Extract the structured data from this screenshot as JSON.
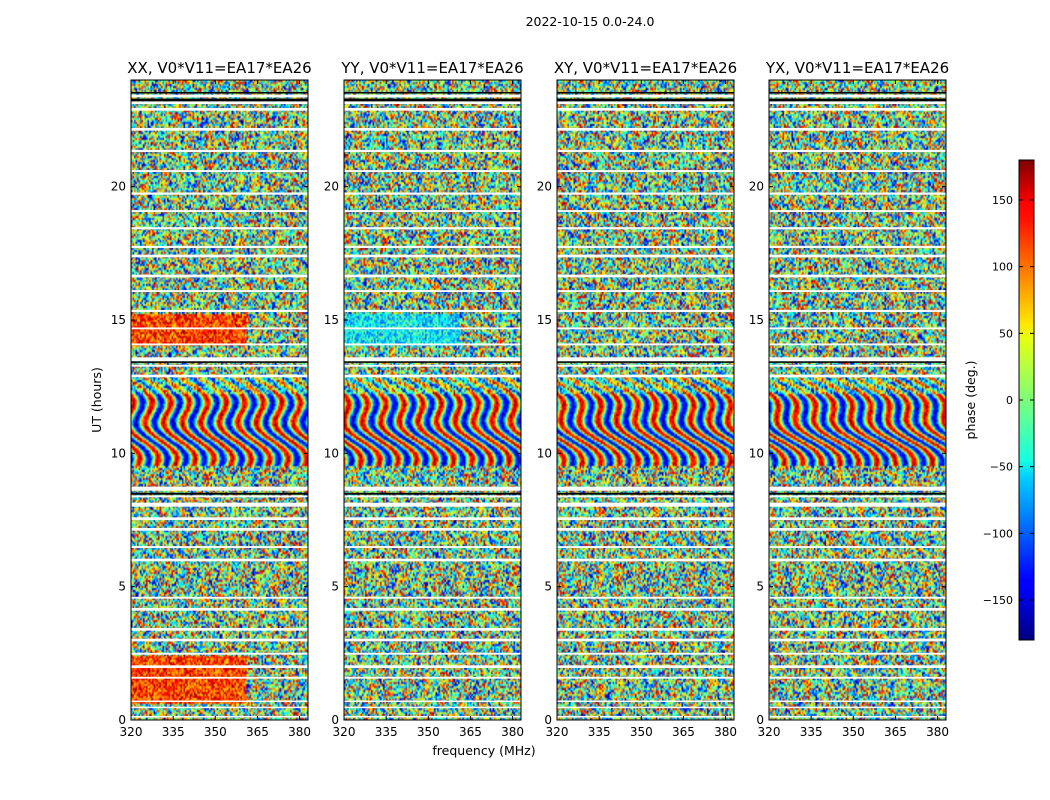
{
  "figure": {
    "suptitle": "2022-10-15 0.0-24.0",
    "xlabel": "frequency (MHz)",
    "ylabel": "UT (hours)",
    "colorbar_label": "phase (deg.)"
  },
  "chart_data": {
    "type": "heatmap",
    "colormap": "jet",
    "panels": [
      {
        "title": "XX, V0*V11=EA17*EA26"
      },
      {
        "title": "YY, V0*V11=EA17*EA26"
      },
      {
        "title": "XY, V0*V11=EA17*EA26"
      },
      {
        "title": "YX, V0*V11=EA17*EA26"
      }
    ],
    "x_ticks": [
      320,
      335,
      350,
      365,
      380
    ],
    "x_tick_labels": [
      "320",
      "335",
      "350",
      "365",
      "380"
    ],
    "xlim": [
      320,
      383
    ],
    "y_ticks": [
      0,
      5,
      10,
      15,
      20
    ],
    "y_tick_labels": [
      "0",
      "5",
      "10",
      "15",
      "20"
    ],
    "ylim": [
      0,
      24
    ],
    "colorbar": {
      "range": [
        -180,
        180
      ],
      "ticks": [
        -150,
        -100,
        -50,
        0,
        50,
        100,
        150
      ],
      "tick_labels": [
        "−150",
        "−100",
        "−50",
        "0",
        "50",
        "100",
        "150"
      ]
    },
    "blank_ut_bands": [
      [
        0.1,
        0.15
      ],
      [
        0.45,
        0.5
      ],
      [
        0.68,
        0.73
      ],
      [
        1.55,
        1.62
      ],
      [
        1.95,
        2.05
      ],
      [
        2.45,
        2.52
      ],
      [
        2.95,
        3.05
      ],
      [
        3.35,
        3.45
      ],
      [
        4.1,
        4.2
      ],
      [
        4.55,
        4.62
      ],
      [
        5.95,
        6.05
      ],
      [
        6.45,
        6.52
      ],
      [
        7.1,
        7.2
      ],
      [
        7.5,
        7.6
      ],
      [
        8.0,
        8.15
      ],
      [
        8.35,
        8.42
      ],
      [
        8.6,
        8.75
      ],
      [
        12.85,
        12.95
      ],
      [
        13.25,
        13.32
      ],
      [
        13.45,
        13.6
      ],
      [
        14.05,
        14.12
      ],
      [
        14.65,
        14.72
      ],
      [
        15.3,
        15.38
      ],
      [
        16.05,
        16.12
      ],
      [
        16.6,
        16.7
      ],
      [
        17.35,
        17.45
      ],
      [
        17.7,
        17.78
      ],
      [
        18.4,
        18.48
      ],
      [
        19.05,
        19.12
      ],
      [
        19.7,
        19.78
      ],
      [
        20.55,
        20.62
      ],
      [
        21.3,
        21.38
      ],
      [
        22.1,
        22.2
      ],
      [
        22.85,
        22.95
      ],
      [
        23.1,
        23.2
      ],
      [
        23.35,
        23.45
      ]
    ],
    "black_ut_bands": [
      [
        8.45,
        8.52
      ],
      [
        13.4,
        13.45
      ],
      [
        23.2,
        23.3
      ],
      [
        23.5,
        23.55
      ]
    ]
  }
}
